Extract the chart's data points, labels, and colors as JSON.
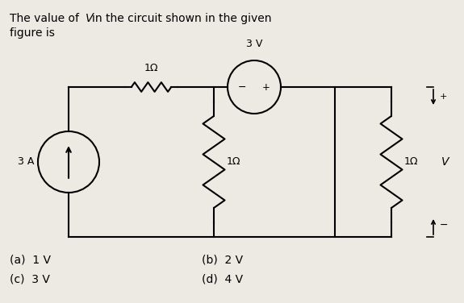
{
  "bg_color": "#ede9e3",
  "options": [
    [
      "(a)  1 V",
      "(b)  2 V"
    ],
    [
      "(c)  3 V",
      "(d)  4 V"
    ]
  ],
  "current_source_label": "3 A",
  "resistor1_label": "1Ω",
  "resistor2_label": "1Ω",
  "resistor3_label": "1Ω",
  "voltage_source_label": "3 V",
  "voltage_label": "V"
}
